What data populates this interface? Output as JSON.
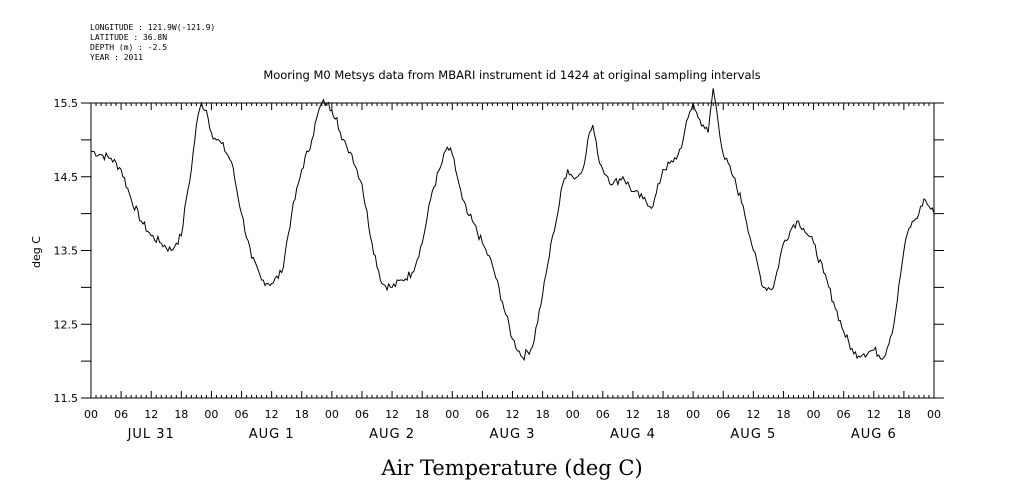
{
  "header": {
    "meta_lines": [
      "LONGITUDE : 121.9W(-121.9)",
      "LATITUDE : 36.8N",
      "DEPTH (m) : -2.5",
      "YEAR : 2011"
    ]
  },
  "chart_data": {
    "type": "line",
    "title": "Mooring M0 Metsys data from MBARI instrument id 1424 at original sampling intervals",
    "ylabel": "deg C",
    "xlabel": "Air Temperature (deg C)",
    "ylim": [
      11.5,
      15.5
    ],
    "yticks": [
      "15.5",
      "14.5",
      "13.5",
      "12.5",
      "11.5"
    ],
    "ytick_values": [
      15.5,
      14.5,
      13.5,
      12.5,
      11.5
    ],
    "xlim": [
      0,
      168
    ],
    "x_unit": "hours since 2011-07-31 00:00",
    "xtick_labels": [
      "00",
      "06",
      "12",
      "18",
      "00",
      "06",
      "12",
      "18",
      "00",
      "06",
      "12",
      "18",
      "00",
      "06",
      "12",
      "18",
      "00",
      "06",
      "12",
      "18",
      "00",
      "06",
      "12",
      "18",
      "00",
      "06",
      "12",
      "18",
      "00"
    ],
    "day_labels": [
      "JUL 31",
      "AUG 1",
      "AUG 2",
      "AUG 3",
      "AUG 4",
      "AUG 5",
      "AUG 6"
    ],
    "grid": false,
    "series": [
      {
        "color": "#000000",
        "x": [
          0,
          2,
          4,
          6,
          8,
          10,
          12,
          14,
          16,
          17,
          18,
          19,
          20,
          21,
          22,
          23,
          24,
          25,
          26,
          28,
          30,
          32,
          34,
          36,
          38,
          40,
          42,
          44,
          45,
          46,
          47,
          48,
          49,
          50,
          51,
          52,
          54,
          56,
          58,
          60,
          62,
          64,
          66,
          68,
          70,
          71,
          72,
          73,
          74,
          75,
          76,
          78,
          80,
          82,
          84,
          86,
          88,
          90,
          91,
          92,
          93,
          94,
          95,
          96,
          97,
          98,
          99,
          100,
          101,
          102,
          103,
          104,
          106,
          108,
          110,
          112,
          114,
          116,
          117,
          118,
          119,
          120,
          121,
          122,
          123,
          124,
          126,
          128,
          130,
          132,
          134,
          136,
          138,
          140,
          141,
          142,
          143,
          144,
          146,
          148,
          150,
          152,
          154,
          156,
          158,
          160,
          162,
          163,
          164,
          165,
          166,
          167,
          168
        ],
        "y": [
          14.85,
          14.8,
          14.75,
          14.6,
          14.2,
          13.9,
          13.7,
          13.6,
          13.5,
          13.6,
          13.7,
          14.2,
          14.6,
          15.2,
          15.5,
          15.4,
          15.1,
          15.0,
          14.95,
          14.7,
          14.0,
          13.4,
          13.1,
          13.05,
          13.2,
          14.0,
          14.6,
          15.0,
          15.3,
          15.5,
          15.5,
          15.4,
          15.3,
          15.0,
          14.9,
          14.8,
          14.4,
          13.6,
          13.05,
          13.0,
          13.1,
          13.2,
          13.6,
          14.3,
          14.7,
          14.9,
          14.8,
          14.5,
          14.2,
          14.0,
          13.9,
          13.6,
          13.3,
          12.8,
          12.3,
          12.05,
          12.2,
          12.9,
          13.3,
          13.7,
          14.0,
          14.4,
          14.6,
          14.5,
          14.5,
          14.6,
          15.0,
          15.2,
          14.8,
          14.6,
          14.5,
          14.4,
          14.5,
          14.3,
          14.2,
          14.1,
          14.6,
          14.7,
          14.8,
          15.0,
          15.3,
          15.5,
          15.3,
          15.2,
          15.1,
          15.7,
          14.8,
          14.5,
          14.1,
          13.5,
          13.0,
          13.0,
          13.6,
          13.85,
          13.9,
          13.8,
          13.7,
          13.6,
          13.2,
          12.8,
          12.4,
          12.1,
          12.1,
          12.15,
          12.05,
          12.5,
          13.5,
          13.8,
          13.9,
          14.0,
          14.2,
          14.1,
          14.0
        ]
      }
    ]
  }
}
